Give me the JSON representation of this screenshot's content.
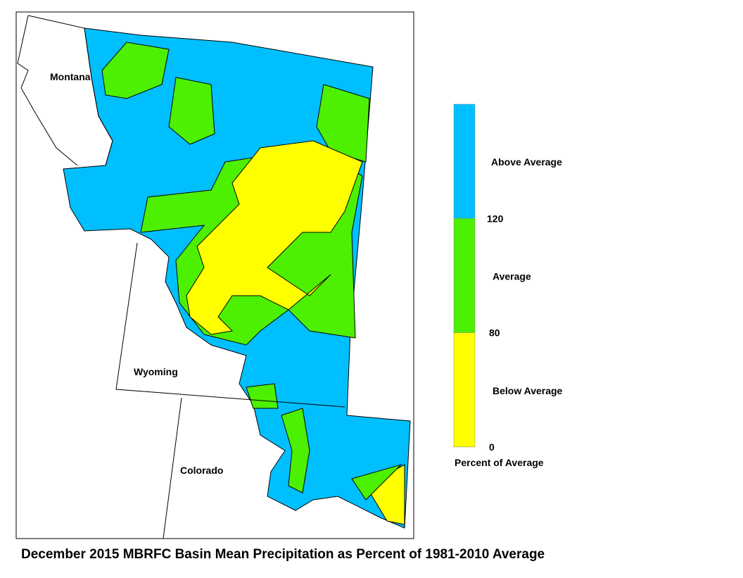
{
  "title": "December 2015 MBRFC Basin Mean Precipitation as Percent of 1981-2010 Average",
  "map": {
    "states": [
      {
        "label": "Montana"
      },
      {
        "label": "Wyoming"
      },
      {
        "label": "Colorado"
      }
    ]
  },
  "legend": {
    "title": "Percent of Average",
    "classes": [
      {
        "label": "Above Average",
        "color": "#00bfff"
      },
      {
        "label": "Average",
        "color": "#4cf000"
      },
      {
        "label": "Below Average",
        "color": "#ffff00"
      }
    ],
    "breaks": [
      120,
      80,
      0
    ]
  }
}
